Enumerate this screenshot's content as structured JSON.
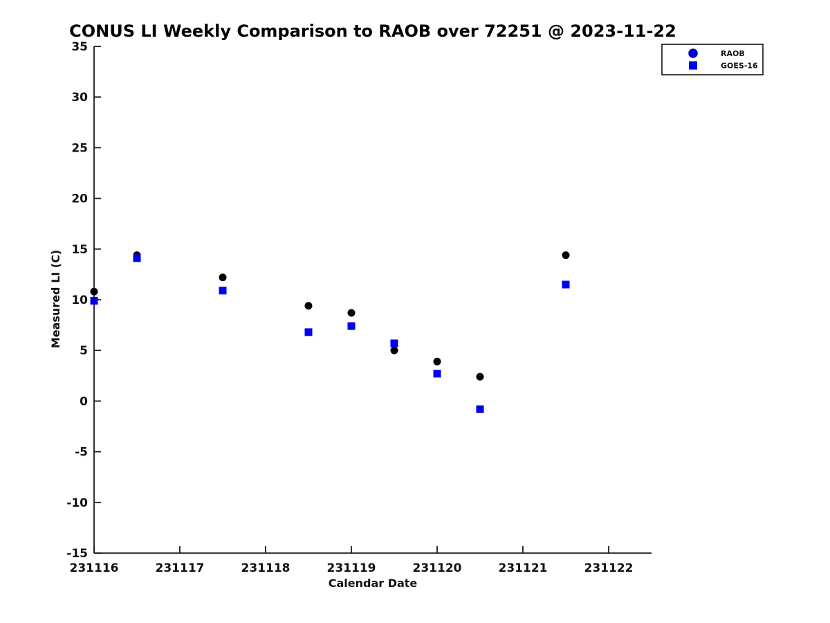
{
  "title": "CONUS LI Weekly Comparison to RAOB over 72251 @ 2023-11-22",
  "colors": {
    "blue": "#0000EE",
    "blue_edge": "#00008B",
    "black": "#000000",
    "axis": "#1a1a1a",
    "background": "#ffffff"
  },
  "legend": {
    "entries": [
      {
        "label": "RAOB",
        "marker": "circle-icon"
      },
      {
        "label": "GOES-16",
        "marker": "square-icon"
      }
    ]
  },
  "chart_data": {
    "type": "scatter",
    "title": "CONUS LI Weekly Comparison to RAOB over 72251 @ 2023-11-22",
    "xlabel": "Calendar Date",
    "ylabel": "Measured LI (C)",
    "xlim": [
      231116,
      231122.5
    ],
    "ylim": [
      -15,
      35
    ],
    "xticks": [
      231116,
      231117,
      231118,
      231119,
      231120,
      231121,
      231122
    ],
    "yticks": [
      -15,
      -10,
      -5,
      0,
      5,
      10,
      15,
      20,
      25,
      30,
      35
    ],
    "grid": false,
    "legend_position": "top-right",
    "x": [
      231116,
      231116.5,
      231117.5,
      231118.5,
      231119,
      231119.5,
      231120,
      231120.5,
      231121.5
    ],
    "series": [
      {
        "name": "RAOB",
        "marker": "circle",
        "color": "#000000",
        "legend_marker_color": "#0000EE",
        "values": [
          10.8,
          14.4,
          12.2,
          9.4,
          8.7,
          5.0,
          3.9,
          2.4,
          14.4
        ]
      },
      {
        "name": "GOES-16",
        "marker": "square",
        "color": "#0000EE",
        "values": [
          9.9,
          14.1,
          10.9,
          6.8,
          7.4,
          5.7,
          2.7,
          -0.8,
          11.5
        ]
      }
    ]
  }
}
